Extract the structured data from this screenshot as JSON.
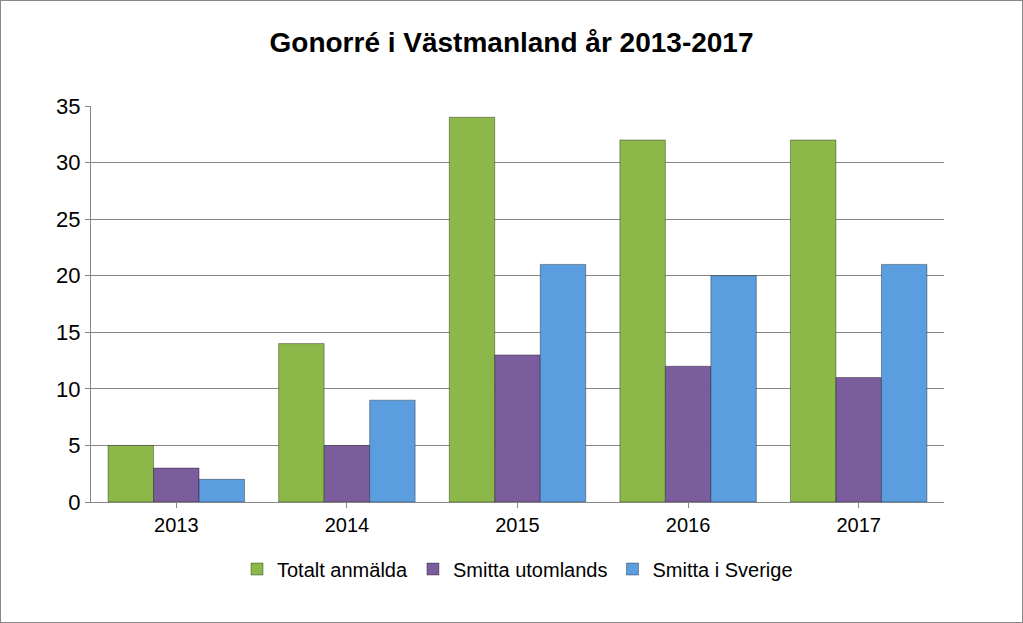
{
  "chart_data": {
    "type": "bar",
    "title": "Gonorré i Västmanland år 2013-2017",
    "categories": [
      "2013",
      "2014",
      "2015",
      "2016",
      "2017"
    ],
    "series": [
      {
        "name": "Totalt anmälda",
        "color": "#8cb84a",
        "values": [
          5,
          14,
          34,
          32,
          32
        ]
      },
      {
        "name": "Smitta utomlands",
        "color": "#7b5c9c",
        "values": [
          3,
          5,
          13,
          12,
          11
        ]
      },
      {
        "name": "Smitta i Sverige",
        "color": "#5b9ee0",
        "values": [
          2,
          9,
          21,
          20,
          21
        ]
      }
    ],
    "ylim": [
      0,
      35
    ],
    "yticks": [
      0,
      5,
      10,
      15,
      20,
      25,
      30,
      35
    ],
    "grid": true,
    "legend": "bottom"
  }
}
